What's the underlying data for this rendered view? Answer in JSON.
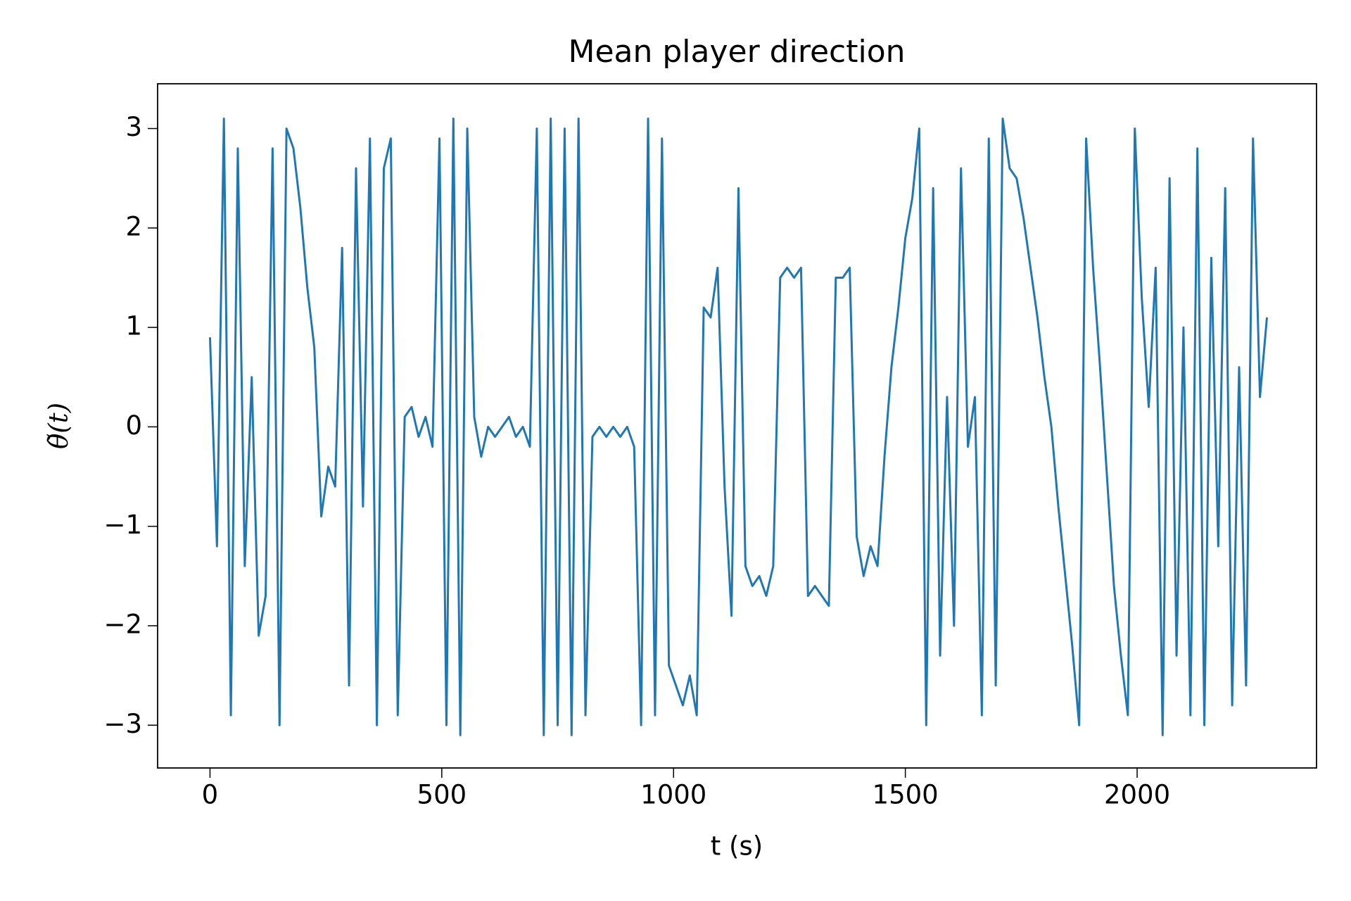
{
  "chart_data": {
    "type": "line",
    "title": "Mean player direction",
    "x_label": "t (s)",
    "y_label": "θ̃(t)",
    "x": [
      0,
      15,
      30,
      45,
      60,
      75,
      90,
      105,
      120,
      135,
      150,
      165,
      180,
      195,
      210,
      225,
      240,
      255,
      270,
      285,
      300,
      315,
      330,
      345,
      360,
      375,
      390,
      405,
      420,
      435,
      450,
      465,
      480,
      495,
      510,
      525,
      540,
      555,
      570,
      585,
      600,
      615,
      630,
      645,
      660,
      675,
      690,
      705,
      720,
      735,
      750,
      765,
      780,
      795,
      810,
      825,
      840,
      855,
      870,
      885,
      900,
      915,
      930,
      945,
      960,
      975,
      990,
      1005,
      1020,
      1035,
      1050,
      1065,
      1080,
      1095,
      1110,
      1125,
      1140,
      1155,
      1170,
      1185,
      1200,
      1215,
      1230,
      1245,
      1260,
      1275,
      1290,
      1305,
      1320,
      1335,
      1350,
      1365,
      1380,
      1395,
      1410,
      1425,
      1440,
      1455,
      1470,
      1485,
      1500,
      1515,
      1530,
      1545,
      1560,
      1575,
      1590,
      1605,
      1620,
      1635,
      1650,
      1665,
      1680,
      1695,
      1710,
      1725,
      1740,
      1755,
      1770,
      1785,
      1800,
      1815,
      1830,
      1845,
      1860,
      1875,
      1890,
      1905,
      1920,
      1935,
      1950,
      1965,
      1980,
      1995,
      2010,
      2025,
      2040,
      2055,
      2070,
      2085,
      2100,
      2115,
      2130,
      2145,
      2160,
      2175,
      2190,
      2205,
      2220,
      2235,
      2250,
      2265,
      2280
    ],
    "series": [
      {
        "color": "#1f77b4",
        "values": [
          0.9,
          -1.2,
          3.1,
          -2.9,
          2.8,
          -1.4,
          0.5,
          -2.1,
          -1.7,
          2.8,
          -3.0,
          3.0,
          2.8,
          2.2,
          1.4,
          0.8,
          -0.9,
          -0.4,
          -0.6,
          1.8,
          -2.6,
          2.6,
          -0.8,
          2.9,
          -3.0,
          2.6,
          2.9,
          -2.9,
          0.1,
          0.2,
          -0.1,
          0.1,
          -0.2,
          2.9,
          -3.0,
          3.1,
          -3.1,
          3.0,
          0.1,
          -0.3,
          0.0,
          -0.1,
          0.0,
          0.1,
          -0.1,
          0.0,
          -0.2,
          3.0,
          -3.1,
          3.1,
          -3.0,
          3.0,
          -3.1,
          3.1,
          -2.9,
          -0.1,
          0.0,
          -0.1,
          0.0,
          -0.1,
          0.0,
          -0.2,
          -3.0,
          3.1,
          -2.9,
          2.9,
          -2.4,
          -2.6,
          -2.8,
          -2.5,
          -2.9,
          1.2,
          1.1,
          1.6,
          -0.6,
          -1.9,
          2.4,
          -1.4,
          -1.6,
          -1.5,
          -1.7,
          -1.4,
          1.5,
          1.6,
          1.5,
          1.6,
          -1.7,
          -1.6,
          -1.7,
          -1.8,
          1.5,
          1.5,
          1.6,
          -1.1,
          -1.5,
          -1.2,
          -1.4,
          -0.3,
          0.6,
          1.2,
          1.9,
          2.3,
          3.0,
          -3.0,
          2.4,
          -2.3,
          0.3,
          -2.0,
          2.6,
          -0.2,
          0.3,
          -2.9,
          2.9,
          -2.6,
          3.1,
          2.6,
          2.5,
          2.1,
          1.6,
          1.1,
          0.5,
          0.0,
          -0.8,
          -1.5,
          -2.2,
          -3.0,
          2.9,
          1.6,
          0.6,
          -0.5,
          -1.6,
          -2.3,
          -2.9,
          3.0,
          1.3,
          0.2,
          1.6,
          -3.1,
          2.5,
          -2.3,
          1.0,
          -2.9,
          2.8,
          -3.0,
          1.7,
          -1.2,
          2.4,
          -2.8,
          0.6,
          -2.6,
          2.9,
          0.3,
          1.1
        ]
      }
    ],
    "xlim": [
      -113,
      2387
    ],
    "ylim": [
      -3.43,
      3.45
    ],
    "xticks": [
      0,
      500,
      1000,
      1500,
      2000
    ],
    "yticks": [
      {
        "value": -3,
        "label": "−3"
      },
      {
        "value": -2,
        "label": "−2"
      },
      {
        "value": -1,
        "label": "−1"
      },
      0,
      1,
      2,
      3
    ],
    "grid": false
  }
}
